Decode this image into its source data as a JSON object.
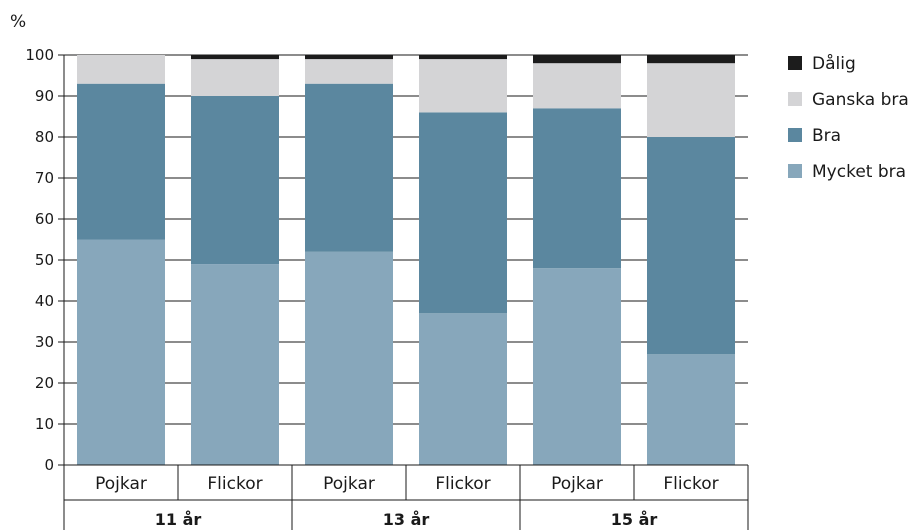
{
  "chart_data": {
    "type": "bar",
    "stacked": true,
    "ylabel": "%",
    "ylim": [
      0,
      100
    ],
    "yticks": [
      0,
      10,
      20,
      30,
      40,
      50,
      60,
      70,
      80,
      90,
      100
    ],
    "grid": true,
    "legend_position": "right",
    "categories": [
      "Pojkar",
      "Flickor",
      "Pojkar",
      "Flickor",
      "Pojkar",
      "Flickor"
    ],
    "groups": [
      {
        "label": "11 år",
        "span": 2
      },
      {
        "label": "13 år",
        "span": 2
      },
      {
        "label": "15 år",
        "span": 2
      }
    ],
    "series": [
      {
        "name": "Mycket bra",
        "color": "#87a7bb",
        "values": [
          55,
          49,
          52,
          37,
          48,
          27
        ]
      },
      {
        "name": "Bra",
        "color": "#5b879f",
        "values": [
          38,
          41,
          41,
          49,
          39,
          53
        ]
      },
      {
        "name": "Ganska bra",
        "color": "#d4d4d6",
        "values": [
          7,
          9,
          6,
          13,
          11,
          18
        ]
      },
      {
        "name": "Dålig",
        "color": "#1c1c1c",
        "values": [
          0,
          1,
          1,
          1,
          2,
          2
        ]
      }
    ],
    "legend_order": [
      "Dålig",
      "Ganska bra",
      "Bra",
      "Mycket bra"
    ]
  }
}
